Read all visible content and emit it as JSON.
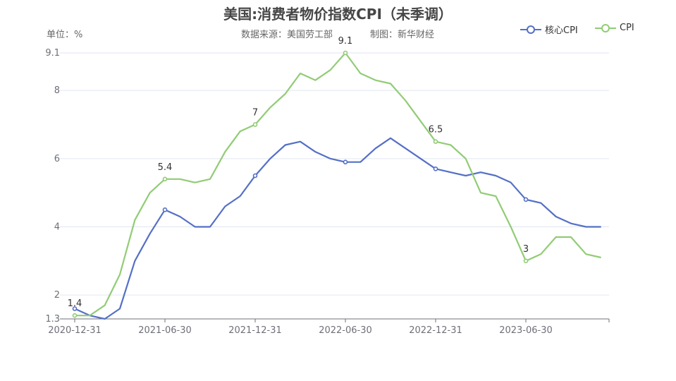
{
  "chart_data": {
    "type": "line",
    "title": "美国:消费者物价指数CPI（未季调）",
    "unit_label": "单位：%",
    "source": "数据来源：美国劳工部",
    "credit": "制图：新华财经",
    "x": [
      "2020-12",
      "2021-01",
      "2021-02",
      "2021-03",
      "2021-04",
      "2021-05",
      "2021-06",
      "2021-07",
      "2021-08",
      "2021-09",
      "2021-10",
      "2021-11",
      "2021-12",
      "2022-01",
      "2022-02",
      "2022-03",
      "2022-04",
      "2022-05",
      "2022-06",
      "2022-07",
      "2022-08",
      "2022-09",
      "2022-10",
      "2022-11",
      "2022-12",
      "2023-01",
      "2023-02",
      "2023-03",
      "2023-04",
      "2023-05",
      "2023-06",
      "2023-07",
      "2023-08",
      "2023-09",
      "2023-10",
      "2023-11"
    ],
    "x_tick_labels": [
      "2020-12-31",
      "2021-06-30",
      "2021-12-31",
      "2022-06-30",
      "2022-12-31",
      "2023-06-30"
    ],
    "y_tick_labels": [
      "1.3",
      "2",
      "4",
      "6",
      "8",
      "9.1"
    ],
    "ylim": [
      1.3,
      9.1
    ],
    "grid": true,
    "legend_position": "top-right",
    "series": [
      {
        "name": "核心CPI",
        "color": "#5470c6",
        "values": [
          1.6,
          1.4,
          1.3,
          1.6,
          3.0,
          3.8,
          4.5,
          4.3,
          4.0,
          4.0,
          4.6,
          4.9,
          5.5,
          6.0,
          6.4,
          6.5,
          6.2,
          6.0,
          5.9,
          5.9,
          6.3,
          6.6,
          6.3,
          6.0,
          5.7,
          5.6,
          5.5,
          5.6,
          5.5,
          5.3,
          4.8,
          4.7,
          4.3,
          4.1,
          4.0,
          4.0
        ]
      },
      {
        "name": "CPI",
        "color": "#91cc75",
        "values": [
          1.4,
          1.4,
          1.7,
          2.6,
          4.2,
          5.0,
          5.4,
          5.4,
          5.3,
          5.4,
          6.2,
          6.8,
          7.0,
          7.5,
          7.9,
          8.5,
          8.3,
          8.6,
          9.1,
          8.5,
          8.3,
          8.2,
          7.7,
          7.1,
          6.5,
          6.4,
          6.0,
          5.0,
          4.9,
          4.0,
          3.0,
          3.2,
          3.7,
          3.7,
          3.2,
          3.1
        ],
        "data_labels": [
          "1.4",
          "5.4",
          "7",
          "9.1",
          "6.5",
          "3"
        ]
      }
    ]
  }
}
